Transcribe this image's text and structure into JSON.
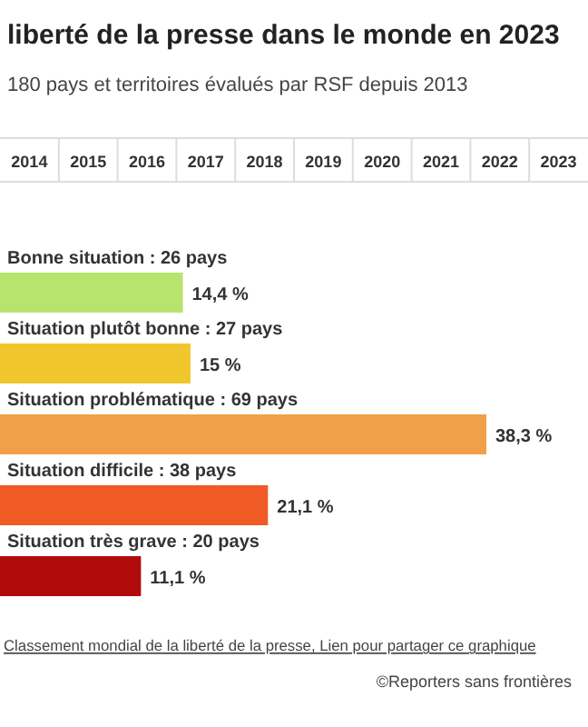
{
  "chart_data": {
    "type": "bar",
    "orientation": "horizontal",
    "title": "liberté de la presse dans le monde en 2023",
    "subtitle": "180 pays et territoires évalués par RSF depuis 2013",
    "categories": [
      "Bonne situation : 26 pays",
      "Situation plutôt bonne : 27 pays",
      "Situation problématique : 69 pays",
      "Situation difficile : 38 pays",
      "Situation très grave : 20 pays"
    ],
    "values": [
      14.4,
      15,
      38.3,
      21.1,
      11.1
    ],
    "colors": [
      "#b6e46c",
      "#f1c62d",
      "#f0a048",
      "#f05a25",
      "#b10b0b"
    ],
    "value_labels": [
      "14,4 %",
      "15 %",
      "38,3 %",
      "21,1 %",
      "11,1 %"
    ],
    "annotations": [
      "2014",
      "2015",
      "2016",
      "2017",
      "2018",
      "2019",
      "2020",
      "2021",
      "2022",
      "2023",
      "Classement mondial de la liberté de la presse, Lien pour partager ce graphique",
      "©Reporters sans frontières"
    ]
  }
}
